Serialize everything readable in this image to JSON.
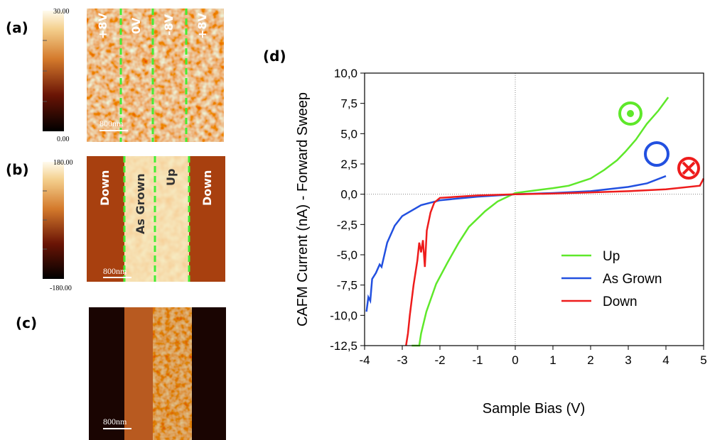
{
  "panels": {
    "a": {
      "label": "(a)",
      "colorbar": [
        "30.00",
        "0.00"
      ],
      "image_labels": [
        "+8V",
        "0V",
        "-8V",
        "+8V"
      ],
      "scale": "800nm"
    },
    "b": {
      "label": "(b)",
      "colorbar": [
        "180.00",
        "-180.00"
      ],
      "image_labels": [
        "Down",
        "As Grown",
        "Up",
        "Down"
      ],
      "scale": "800nm"
    },
    "c": {
      "label": "(c)",
      "scale": "800nm"
    },
    "d": {
      "label": "(d)"
    }
  },
  "chart_data": {
    "type": "line",
    "xlabel": "Sample Bias (V)",
    "ylabel": "CAFM Current (nA) - Forward Sweep",
    "xlim": [
      -4,
      5
    ],
    "xticks": [
      -4,
      -3,
      -2,
      -1,
      0,
      1,
      2,
      3,
      4,
      5
    ],
    "ylim": [
      -12.5,
      10
    ],
    "yticks": [
      {
        "value": -12.5,
        "label": "-12,5"
      },
      {
        "value": -10,
        "label": "-10,0"
      },
      {
        "value": -7.5,
        "label": "-7,5"
      },
      {
        "value": -5,
        "label": "-5,0"
      },
      {
        "value": -2.5,
        "label": "-2,5"
      },
      {
        "value": 0,
        "label": "0,0"
      },
      {
        "value": 2.5,
        "label": "2,5"
      },
      {
        "value": 5,
        "label": "5,0"
      },
      {
        "value": 7.5,
        "label": "7,5"
      },
      {
        "value": 10,
        "label": "10,0"
      }
    ],
    "legend": "lower right",
    "series": [
      {
        "name": "Up",
        "color": "#5ee82a",
        "x": [
          -2.75,
          -2.55,
          -2.5,
          -2.36,
          -2.1,
          -1.79,
          -1.5,
          -1.23,
          -0.8,
          -0.47,
          0,
          0.5,
          1.0,
          1.42,
          2.0,
          2.36,
          2.7,
          2.92,
          3.2,
          3.49,
          3.8,
          4.06
        ],
        "values": [
          -12.5,
          -12.5,
          -11.5,
          -9.7,
          -7.4,
          -5.6,
          -4.0,
          -2.7,
          -1.4,
          -0.6,
          0.1,
          0.3,
          0.5,
          0.7,
          1.3,
          2.0,
          2.8,
          3.5,
          4.5,
          5.8,
          6.9,
          8.0
        ]
      },
      {
        "name": "As Grown",
        "color": "#2250e0",
        "x": [
          -3.95,
          -3.9,
          -3.85,
          -3.8,
          -3.7,
          -3.6,
          -3.55,
          -3.4,
          -3.2,
          -3.0,
          -2.5,
          -2.0,
          -1.0,
          0,
          1.0,
          2.0,
          3.0,
          3.5,
          4.0
        ],
        "values": [
          -9.7,
          -8.5,
          -8.8,
          -7.0,
          -6.5,
          -5.8,
          -6.0,
          -4.0,
          -2.6,
          -1.8,
          -0.9,
          -0.5,
          -0.2,
          0,
          0.1,
          0.25,
          0.6,
          0.9,
          1.5
        ]
      },
      {
        "name": "Down",
        "color": "#ee1c1c",
        "x": [
          -2.9,
          -2.85,
          -2.8,
          -2.7,
          -2.6,
          -2.55,
          -2.5,
          -2.45,
          -2.4,
          -2.35,
          -2.25,
          -2.15,
          -2.0,
          -1.0,
          0,
          1.0,
          2.0,
          3.0,
          4.0,
          4.9,
          5.0
        ],
        "values": [
          -12.5,
          -11.5,
          -10.0,
          -7.5,
          -5.5,
          -4.0,
          -4.8,
          -3.8,
          -6.0,
          -3.0,
          -1.5,
          -0.7,
          -0.3,
          -0.1,
          0,
          0.05,
          0.15,
          0.25,
          0.4,
          0.7,
          1.3
        ]
      }
    ]
  }
}
